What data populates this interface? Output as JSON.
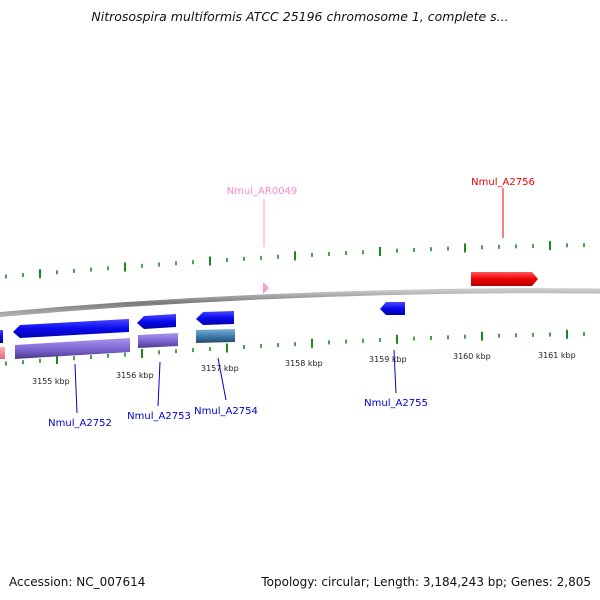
{
  "title": "Nitrosospira multiformis ATCC 25196 chromosome 1, complete s...",
  "footer": {
    "accession": "Accession: NC_007614",
    "topology": "Topology: circular; Length: 3,184,243 bp; Genes: 2,805"
  },
  "colors": {
    "forward_gene": "#ff1a1a",
    "reverse_gene": "#1a1aff",
    "rna": "#ff9ad5",
    "cds_band": "#8a72d8",
    "cds_band_alt": "#4a8ac0",
    "ticks": "#1a8a1a",
    "backbone": "#8a8a8a"
  },
  "kbp_labels": [
    "3155 kbp",
    "3156 kbp",
    "3157 kbp",
    "3158 kbp",
    "3159 kbp",
    "3160 kbp",
    "3161 kbp"
  ],
  "genes": [
    {
      "name": "Nmul_A2752",
      "strand": "reverse"
    },
    {
      "name": "Nmul_A2753",
      "strand": "reverse"
    },
    {
      "name": "Nmul_A2754",
      "strand": "reverse"
    },
    {
      "name": "Nmul_AR0049",
      "strand": "forward",
      "type": "rna"
    },
    {
      "name": "Nmul_A2755",
      "strand": "reverse"
    },
    {
      "name": "Nmul_A2756",
      "strand": "forward"
    }
  ]
}
